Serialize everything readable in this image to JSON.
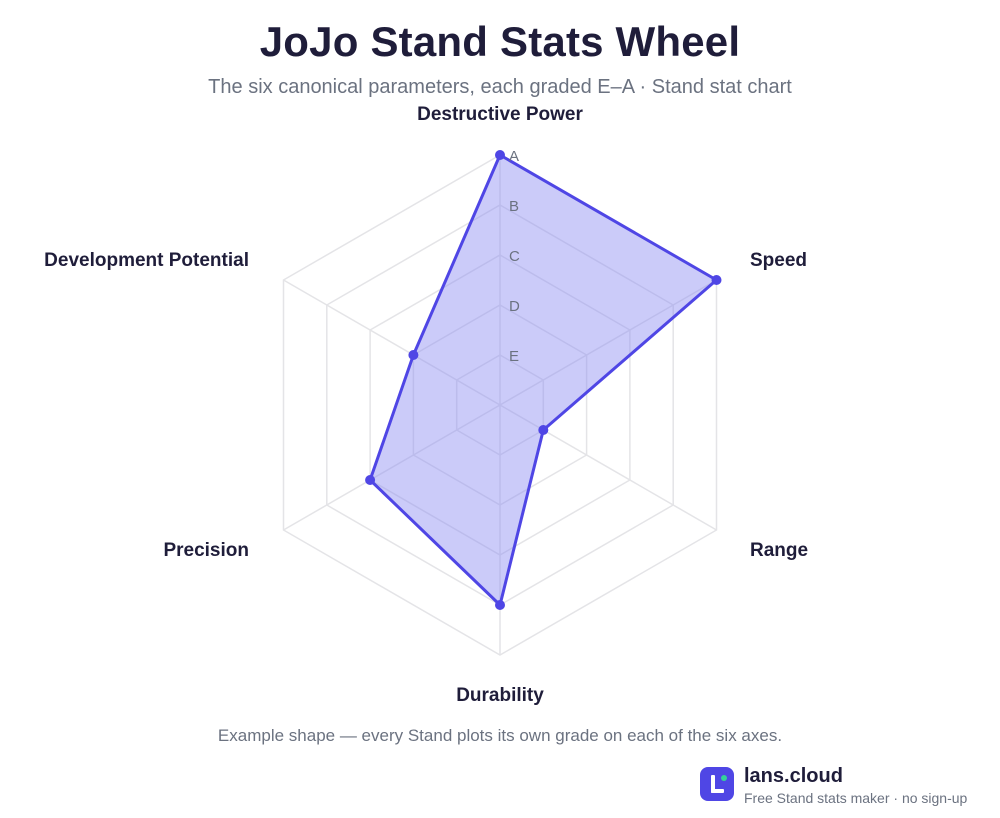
{
  "header": {
    "title": "JoJo Stand Stats Wheel",
    "subtitle": "The six canonical parameters, each graded E–A · Stand stat chart"
  },
  "chart_data": {
    "type": "radar",
    "axes": [
      "Destructive Power",
      "Speed",
      "Range",
      "Durability",
      "Precision",
      "Development Potential"
    ],
    "grades": [
      "E",
      "D",
      "C",
      "B",
      "A"
    ],
    "scale_max": 5,
    "series": [
      {
        "values": [
          5,
          5,
          1,
          4,
          3,
          2
        ]
      }
    ],
    "colors": {
      "stroke": "#4f46e5",
      "fill": "#8b8cf2",
      "grid": "#e4e4e7",
      "grade_label": "#6b7280",
      "axis_label": "#1f1d3a"
    },
    "grid": true
  },
  "footer": {
    "note": "Example shape — every Stand plots its own grade on each of the six axes.",
    "brand_name": "lans.cloud",
    "brand_tagline": "Free Stand stats maker · no sign-up"
  }
}
